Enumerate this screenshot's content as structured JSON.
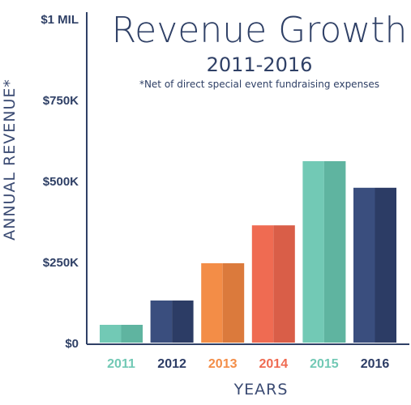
{
  "chart_data": {
    "type": "bar",
    "title": "Revenue Growth",
    "subtitle": "2011-2016",
    "note": "*Net of direct special event fundraising expenses",
    "xlabel": "YEARS",
    "ylabel": "ANNUAL REVENUE*",
    "categories": [
      "2011",
      "2012",
      "2013",
      "2014",
      "2015",
      "2016"
    ],
    "values": [
      55000,
      130000,
      245000,
      362000,
      560000,
      478000
    ],
    "ylim": [
      0,
      1000000
    ],
    "yticks": [
      {
        "value": 0,
        "label": "$0"
      },
      {
        "value": 250000,
        "label": "$250K"
      },
      {
        "value": 500000,
        "label": "$500K"
      },
      {
        "value": 750000,
        "label": "$750K"
      },
      {
        "value": 1000000,
        "label": "$1 MIL"
      }
    ],
    "grid": false,
    "colors": {
      "2011": [
        "#72c9b5",
        "#5fb4a0"
      ],
      "2012": [
        "#3a4e7e",
        "#2c3c65"
      ],
      "2013": [
        "#f38d47",
        "#db7a3c"
      ],
      "2014": [
        "#ef6b52",
        "#d95e48"
      ],
      "2015": [
        "#72c9b5",
        "#5fb4a0"
      ],
      "2016": [
        "#3a4e7e",
        "#2c3c65"
      ]
    },
    "label_colors": {
      "2011": "#72c9b5",
      "2012": "#2c3c65",
      "2013": "#f38d47",
      "2014": "#ef6b52",
      "2015": "#72c9b5",
      "2016": "#2c3c65"
    },
    "axis_color": "#2f4066"
  }
}
